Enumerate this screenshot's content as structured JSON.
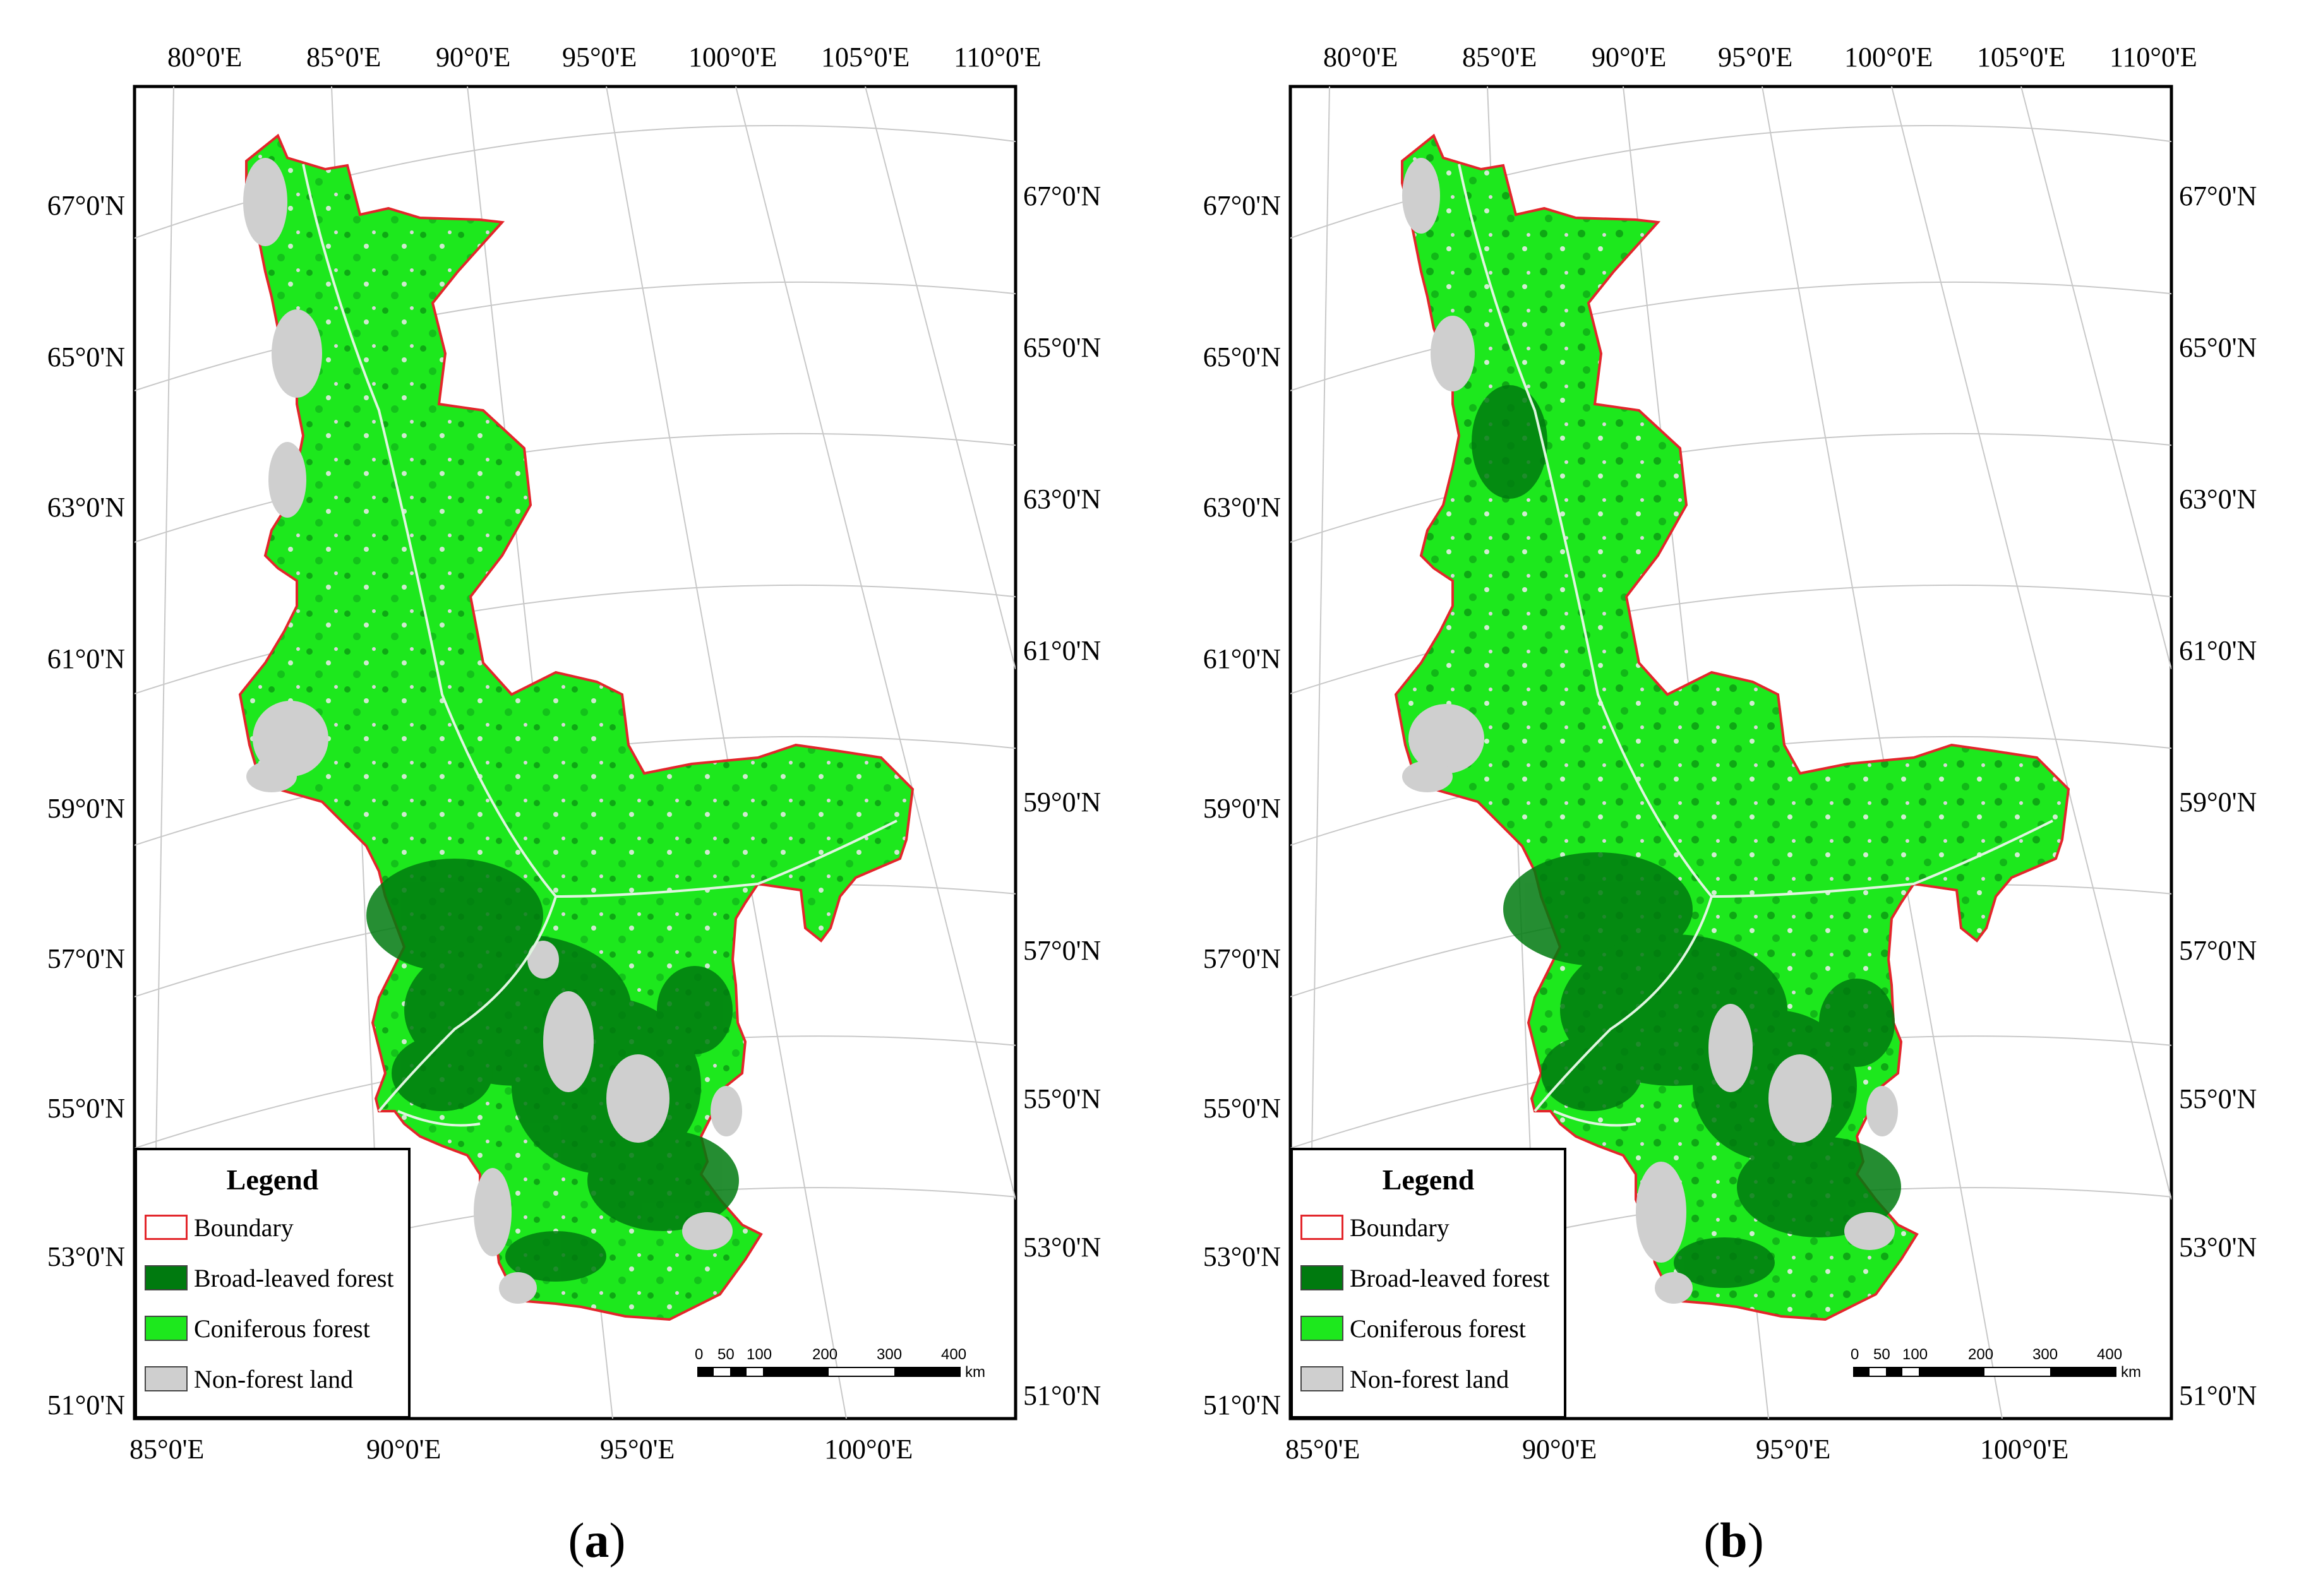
{
  "maps": [
    {
      "id": "a",
      "caption": "a",
      "top_lon_labels": [
        "80°0'E",
        "85°0'E",
        "90°0'E",
        "95°0'E",
        "100°0'E",
        "105°0'E",
        "110°0'E"
      ],
      "bottom_lon_labels": [
        "85°0'E",
        "90°0'E",
        "95°0'E",
        "100°0'E"
      ],
      "left_lat_labels": [
        "67°0'N",
        "65°0'N",
        "63°0'N",
        "61°0'N",
        "59°0'N",
        "57°0'N",
        "55°0'N",
        "53°0'N",
        "51°0'N"
      ],
      "right_lat_labels": [
        "67°0'N",
        "65°0'N",
        "63°0'N",
        "61°0'N",
        "59°0'N",
        "57°0'N",
        "55°0'N",
        "53°0'N",
        "51°0'N"
      ],
      "legend": {
        "title": "Legend",
        "items": [
          {
            "label": "Boundary",
            "color": "#ffffff",
            "border": "#e3262b"
          },
          {
            "label": "Broad-leaved forest",
            "color": "#007a0f",
            "border": "#444444"
          },
          {
            "label": "Coniferous forest",
            "color": "#1de81d",
            "border": "#444444"
          },
          {
            "label": "Non-forest land",
            "color": "#cfcfcf",
            "border": "#444444"
          }
        ]
      },
      "scale": {
        "ticks": [
          "0",
          "50",
          "100",
          "200",
          "300",
          "400"
        ],
        "unit": "km"
      }
    },
    {
      "id": "b",
      "caption": "b",
      "top_lon_labels": [
        "80°0'E",
        "85°0'E",
        "90°0'E",
        "95°0'E",
        "100°0'E",
        "105°0'E",
        "110°0'E"
      ],
      "bottom_lon_labels": [
        "85°0'E",
        "90°0'E",
        "95°0'E",
        "100°0'E"
      ],
      "left_lat_labels": [
        "67°0'N",
        "65°0'N",
        "63°0'N",
        "61°0'N",
        "59°0'N",
        "57°0'N",
        "55°0'N",
        "53°0'N",
        "51°0'N"
      ],
      "right_lat_labels": [
        "67°0'N",
        "65°0'N",
        "63°0'N",
        "61°0'N",
        "59°0'N",
        "57°0'N",
        "55°0'N",
        "53°0'N",
        "51°0'N"
      ],
      "legend": {
        "title": "Legend",
        "items": [
          {
            "label": "Boundary",
            "color": "#ffffff",
            "border": "#e3262b"
          },
          {
            "label": "Broad-leaved forest",
            "color": "#007a0f",
            "border": "#444444"
          },
          {
            "label": "Coniferous forest",
            "color": "#1de81d",
            "border": "#444444"
          },
          {
            "label": "Non-forest land",
            "color": "#cfcfcf",
            "border": "#444444"
          }
        ]
      },
      "scale": {
        "ticks": [
          "0",
          "50",
          "100",
          "200",
          "300",
          "400"
        ],
        "unit": "km"
      }
    }
  ],
  "colors": {
    "coniferous": "#1de81d",
    "broadleaved": "#007a0f",
    "nonforest": "#cfcfcf",
    "boundary": "#e3262b",
    "graticule": "#c8c8c8"
  }
}
